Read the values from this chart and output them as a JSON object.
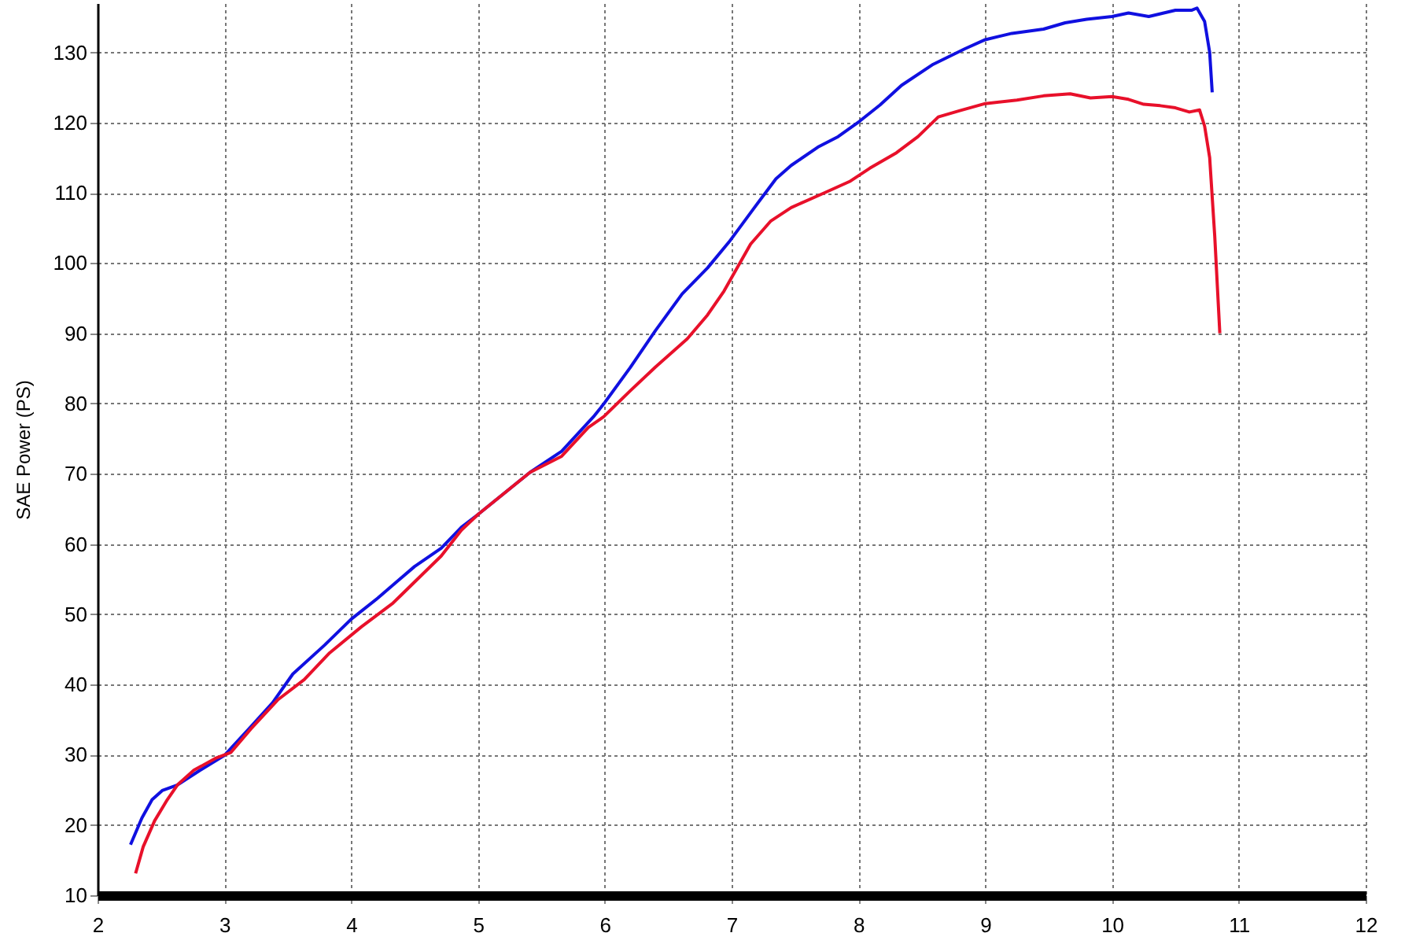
{
  "chart_data": {
    "type": "line",
    "ylabel": "SAE Power (PS)",
    "xlim": [
      2,
      12
    ],
    "ylim": [
      10,
      137
    ],
    "xticks": [
      2,
      3,
      4,
      5,
      6,
      7,
      8,
      9,
      10,
      11,
      12
    ],
    "yticks": [
      10,
      20,
      30,
      40,
      50,
      60,
      70,
      80,
      90,
      100,
      110,
      120,
      130
    ],
    "grid": true,
    "line_style": "solid",
    "marker": "none",
    "series": [
      {
        "color": "#1010e0",
        "x": [
          2.26,
          2.35,
          2.43,
          2.51,
          2.63,
          2.8,
          3.0,
          3.21,
          3.38,
          3.54,
          3.79,
          4.0,
          4.21,
          4.5,
          4.71,
          4.87,
          5.0,
          5.41,
          5.66,
          5.91,
          5.99,
          6.2,
          6.4,
          6.61,
          6.81,
          6.98,
          7.18,
          7.35,
          7.47,
          7.68,
          7.84,
          8.01,
          8.17,
          8.34,
          8.59,
          8.84,
          9.0,
          9.21,
          9.46,
          9.63,
          9.8,
          10.0,
          10.13,
          10.29,
          10.5,
          10.63,
          10.67,
          10.73,
          10.77,
          10.79
        ],
        "values": [
          17.2,
          21,
          23.6,
          24.9,
          25.7,
          27.7,
          29.9,
          34,
          37.4,
          41.5,
          45.6,
          49.3,
          52.3,
          56.8,
          59.4,
          62.4,
          64.2,
          70.2,
          73.2,
          78.1,
          79.9,
          85.1,
          90.4,
          95.6,
          99.3,
          103,
          107.9,
          112,
          113.9,
          116.5,
          118,
          120.2,
          122.5,
          125.3,
          128.3,
          130.5,
          131.8,
          132.7,
          133.3,
          134.2,
          134.7,
          135.1,
          135.6,
          135.1,
          136,
          136,
          136.3,
          134.4,
          130,
          124.3
        ]
      },
      {
        "color": "#e8102a",
        "x": [
          2.3,
          2.36,
          2.45,
          2.55,
          2.63,
          2.76,
          2.93,
          3.05,
          3.21,
          3.42,
          3.63,
          3.83,
          4.08,
          4.33,
          4.54,
          4.71,
          4.87,
          5.0,
          5.41,
          5.66,
          5.87,
          5.99,
          6.2,
          6.4,
          6.65,
          6.81,
          6.94,
          7.15,
          7.31,
          7.47,
          7.72,
          7.93,
          8.09,
          8.3,
          8.47,
          8.63,
          8.8,
          9.0,
          9.25,
          9.46,
          9.67,
          9.83,
          10.0,
          10.13,
          10.25,
          10.38,
          10.5,
          10.61,
          10.69,
          10.73,
          10.77,
          10.81,
          10.85
        ],
        "values": [
          13.1,
          16.9,
          20.6,
          23.6,
          25.7,
          27.8,
          29.5,
          30.3,
          33.7,
          37.8,
          40.7,
          44.5,
          48.2,
          51.6,
          55.3,
          58.3,
          62,
          64.2,
          70.2,
          72.5,
          76.6,
          78.1,
          81.8,
          85.2,
          89.2,
          92.6,
          96,
          102.7,
          106,
          107.9,
          109.9,
          111.6,
          113.5,
          115.7,
          118,
          120.8,
          121.7,
          122.7,
          123.2,
          123.8,
          124.1,
          123.5,
          123.7,
          123.3,
          122.6,
          122.4,
          122.1,
          121.5,
          121.8,
          119.5,
          115,
          103.8,
          90
        ]
      }
    ]
  }
}
